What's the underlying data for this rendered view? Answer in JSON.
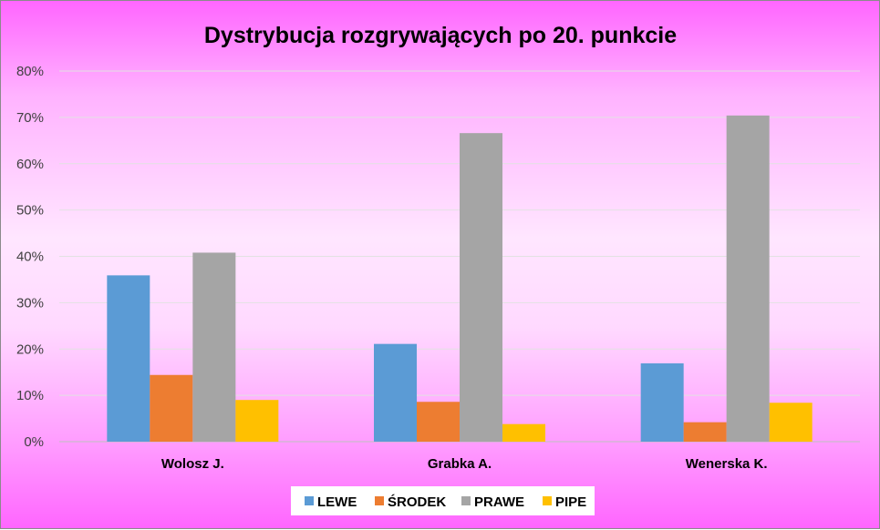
{
  "chart_data": {
    "type": "bar",
    "title": "Dystrybucja rozgrywających po 20. punkcie",
    "xlabel": "",
    "ylabel": "",
    "ylim": [
      0,
      80
    ],
    "yticks": [
      0,
      10,
      20,
      30,
      40,
      50,
      60,
      70,
      80
    ],
    "ytick_labels": [
      "0%",
      "10%",
      "20%",
      "30%",
      "40%",
      "50%",
      "60%",
      "70%",
      "80%"
    ],
    "grid": true,
    "legend_position": "bottom",
    "categories": [
      "Wolosz J.",
      "Grabka A.",
      "Wenerska K."
    ],
    "series": [
      {
        "name": "LEWE",
        "color": "#5b9bd5",
        "values": [
          35.9,
          21.1,
          16.9
        ]
      },
      {
        "name": "ŚRODEK",
        "color": "#ed7d31",
        "values": [
          14.4,
          8.6,
          4.2
        ]
      },
      {
        "name": "PRAWE",
        "color": "#a5a5a5",
        "values": [
          40.8,
          66.6,
          70.4
        ]
      },
      {
        "name": "PIPE",
        "color": "#ffc000",
        "values": [
          9.0,
          3.8,
          8.4
        ]
      }
    ]
  }
}
